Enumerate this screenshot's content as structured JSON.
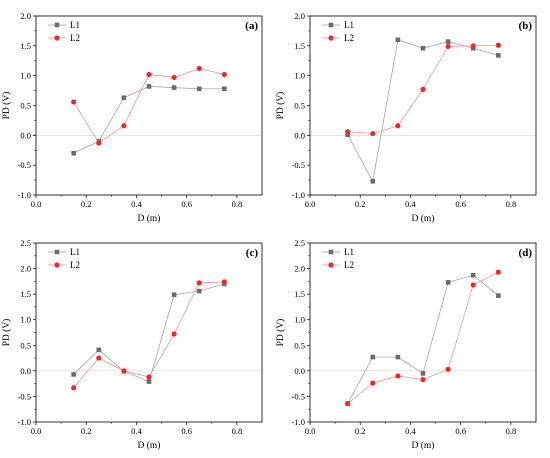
{
  "colors": {
    "L1": "#6b6b6b",
    "L2": "#f0282d",
    "L1_line": "#9a9a9a",
    "L2_line": "#f08a8a",
    "zero_line": "#d8d8d8"
  },
  "chart_data": [
    {
      "type": "line",
      "panel_label": "(a)",
      "xlabel": "D (m)",
      "ylabel": "PD (V)",
      "xlim": [
        0.0,
        0.9
      ],
      "ylim": [
        -1.0,
        2.0
      ],
      "xticks": [
        "0.0",
        "0.2",
        "0.4",
        "0.6",
        "0.8"
      ],
      "yticks": [
        "-1.0",
        "-0.5",
        "0.0",
        "0.5",
        "1.0",
        "1.5",
        "2.0"
      ],
      "legend": "top-left",
      "x": [
        0.15,
        0.25,
        0.35,
        0.45,
        0.55,
        0.65,
        0.75
      ],
      "series": [
        {
          "name": "L1",
          "marker": "square",
          "values": [
            -0.3,
            -0.1,
            0.63,
            0.82,
            0.8,
            0.78,
            0.78
          ]
        },
        {
          "name": "L2",
          "marker": "circle",
          "values": [
            0.56,
            -0.13,
            0.16,
            1.02,
            0.97,
            1.12,
            1.02
          ]
        }
      ]
    },
    {
      "type": "line",
      "panel_label": "(b)",
      "xlabel": "D (m)",
      "ylabel": "PD (V)",
      "xlim": [
        0.0,
        0.9
      ],
      "ylim": [
        -1.0,
        2.0
      ],
      "xticks": [
        "0.0",
        "0.2",
        "0.4",
        "0.6",
        "0.8"
      ],
      "yticks": [
        "-1.0",
        "-0.5",
        "0.0",
        "0.5",
        "1.0",
        "1.5",
        "2.0"
      ],
      "legend": "top-left",
      "x": [
        0.15,
        0.25,
        0.35,
        0.45,
        0.55,
        0.65,
        0.75
      ],
      "series": [
        {
          "name": "L1",
          "marker": "square",
          "values": [
            0.01,
            -0.77,
            1.6,
            1.46,
            1.57,
            1.46,
            1.34
          ]
        },
        {
          "name": "L2",
          "marker": "circle",
          "values": [
            0.06,
            0.03,
            0.16,
            0.77,
            1.49,
            1.5,
            1.51
          ]
        }
      ]
    },
    {
      "type": "line",
      "panel_label": "(c)",
      "xlabel": "D (m)",
      "ylabel": "PD (V)",
      "xlim": [
        0.0,
        0.9
      ],
      "ylim": [
        -1.0,
        2.5
      ],
      "xticks": [
        "0.0",
        "0.2",
        "0.4",
        "0.6",
        "0.8"
      ],
      "yticks": [
        "-1.0",
        "-0.5",
        "0.0",
        "0.5",
        "1.0",
        "1.5",
        "2.0",
        "2.5"
      ],
      "legend": "top-left",
      "x": [
        0.15,
        0.25,
        0.35,
        0.45,
        0.55,
        0.65,
        0.75
      ],
      "series": [
        {
          "name": "L1",
          "marker": "square",
          "values": [
            -0.07,
            0.41,
            -0.01,
            -0.21,
            1.49,
            1.56,
            1.7
          ]
        },
        {
          "name": "L2",
          "marker": "circle",
          "values": [
            -0.33,
            0.25,
            0.0,
            -0.12,
            0.72,
            1.72,
            1.74
          ]
        }
      ]
    },
    {
      "type": "line",
      "panel_label": "(d)",
      "xlabel": "D (m)",
      "ylabel": "PD (V)",
      "xlim": [
        0.0,
        0.9
      ],
      "ylim": [
        -1.0,
        2.5
      ],
      "xticks": [
        "0.0",
        "0.2",
        "0.4",
        "0.6",
        "0.8"
      ],
      "yticks": [
        "-1.0",
        "-0.5",
        "0.0",
        "0.5",
        "1.0",
        "1.5",
        "2.0",
        "2.5"
      ],
      "legend": "top-left",
      "x": [
        0.15,
        0.25,
        0.35,
        0.45,
        0.55,
        0.65,
        0.75
      ],
      "series": [
        {
          "name": "L1",
          "marker": "square",
          "values": [
            -0.64,
            0.27,
            0.27,
            -0.05,
            1.73,
            1.87,
            1.47
          ]
        },
        {
          "name": "L2",
          "marker": "circle",
          "values": [
            -0.64,
            -0.24,
            -0.1,
            -0.17,
            0.03,
            1.68,
            1.93
          ]
        }
      ]
    }
  ]
}
